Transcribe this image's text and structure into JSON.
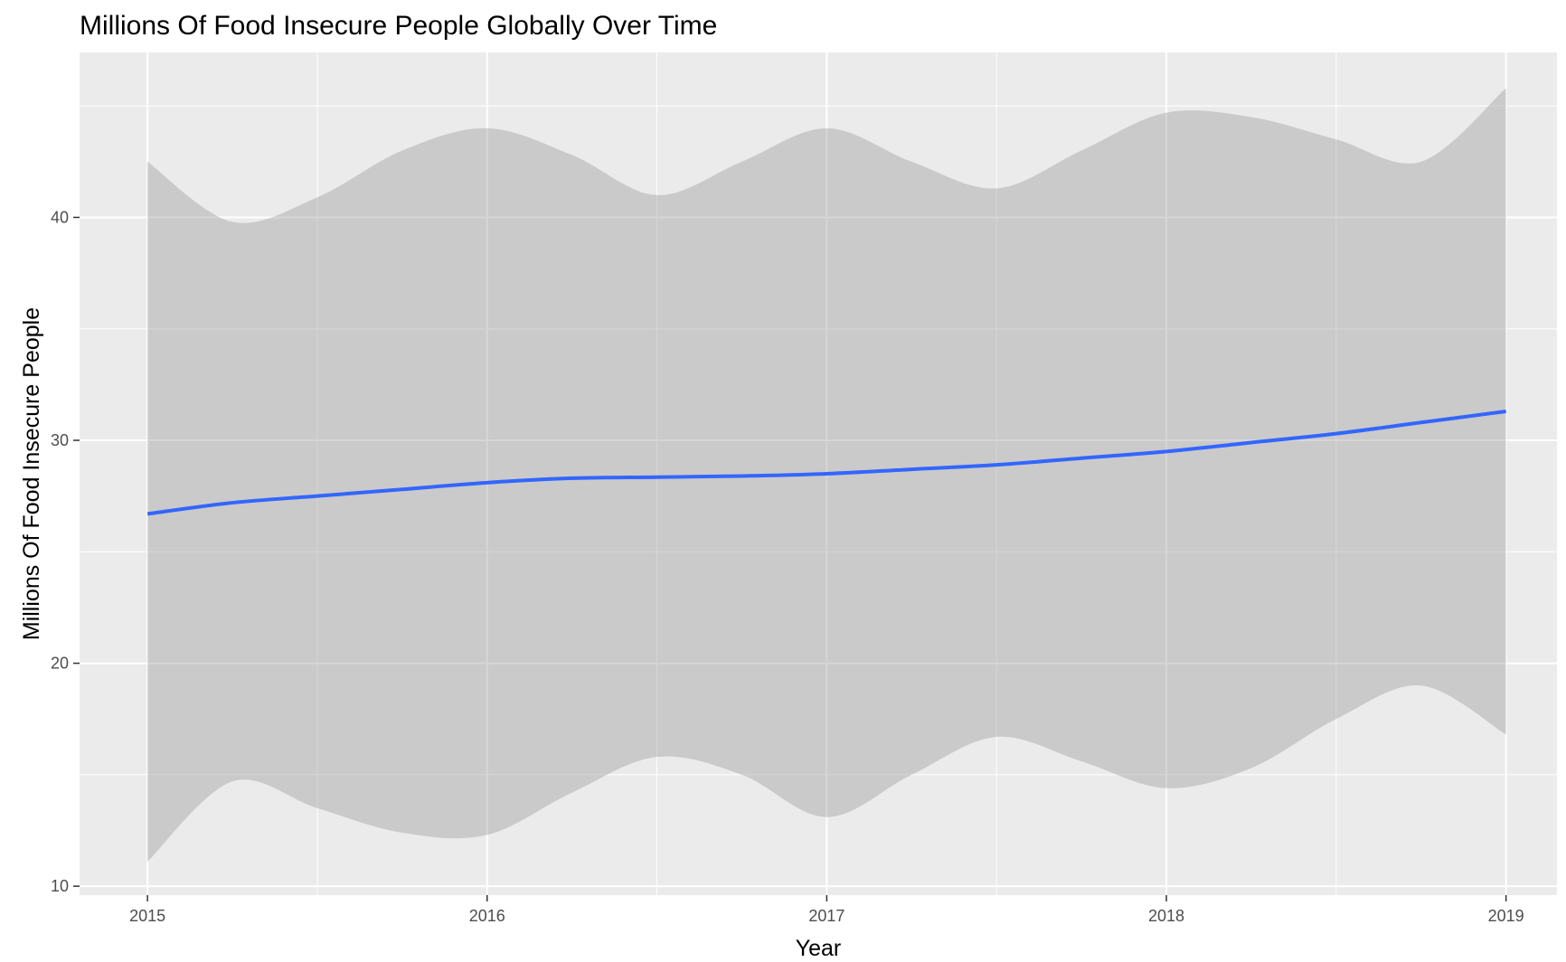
{
  "chart_data": {
    "type": "line",
    "title": "Millions Of Food Insecure People Globally Over Time",
    "xlabel": "Year",
    "ylabel": "Millions Of Food Insecure People",
    "xlim": [
      2014.8,
      2019.15
    ],
    "ylim": [
      9.6,
      47.4
    ],
    "x_ticks": [
      2015,
      2016,
      2017,
      2018,
      2019
    ],
    "y_ticks": [
      10,
      20,
      30,
      40
    ],
    "grid": true,
    "series": [
      {
        "x": [
          2015,
          2015.25,
          2015.5,
          2015.75,
          2016,
          2016.25,
          2016.5,
          2016.75,
          2017,
          2017.25,
          2017.5,
          2017.75,
          2018,
          2018.25,
          2018.5,
          2018.75,
          2019
        ],
        "y": [
          26.7,
          27.2,
          27.5,
          27.8,
          28.1,
          28.3,
          28.35,
          28.4,
          28.5,
          28.7,
          28.9,
          29.2,
          29.5,
          29.9,
          30.3,
          30.8,
          31.3
        ],
        "ymin": [
          11.1,
          14.7,
          13.5,
          12.4,
          12.3,
          14.2,
          15.8,
          15.0,
          13.1,
          15.0,
          16.7,
          15.6,
          14.4,
          15.3,
          17.5,
          19.0,
          16.8
        ],
        "ymax": [
          42.5,
          39.8,
          40.9,
          43.0,
          44.0,
          42.8,
          41.0,
          42.5,
          44.0,
          42.5,
          41.3,
          43.0,
          44.7,
          44.5,
          43.5,
          42.5,
          45.8
        ],
        "color": "#3366ff",
        "ribbon_color": "#cbcbcb"
      }
    ]
  }
}
